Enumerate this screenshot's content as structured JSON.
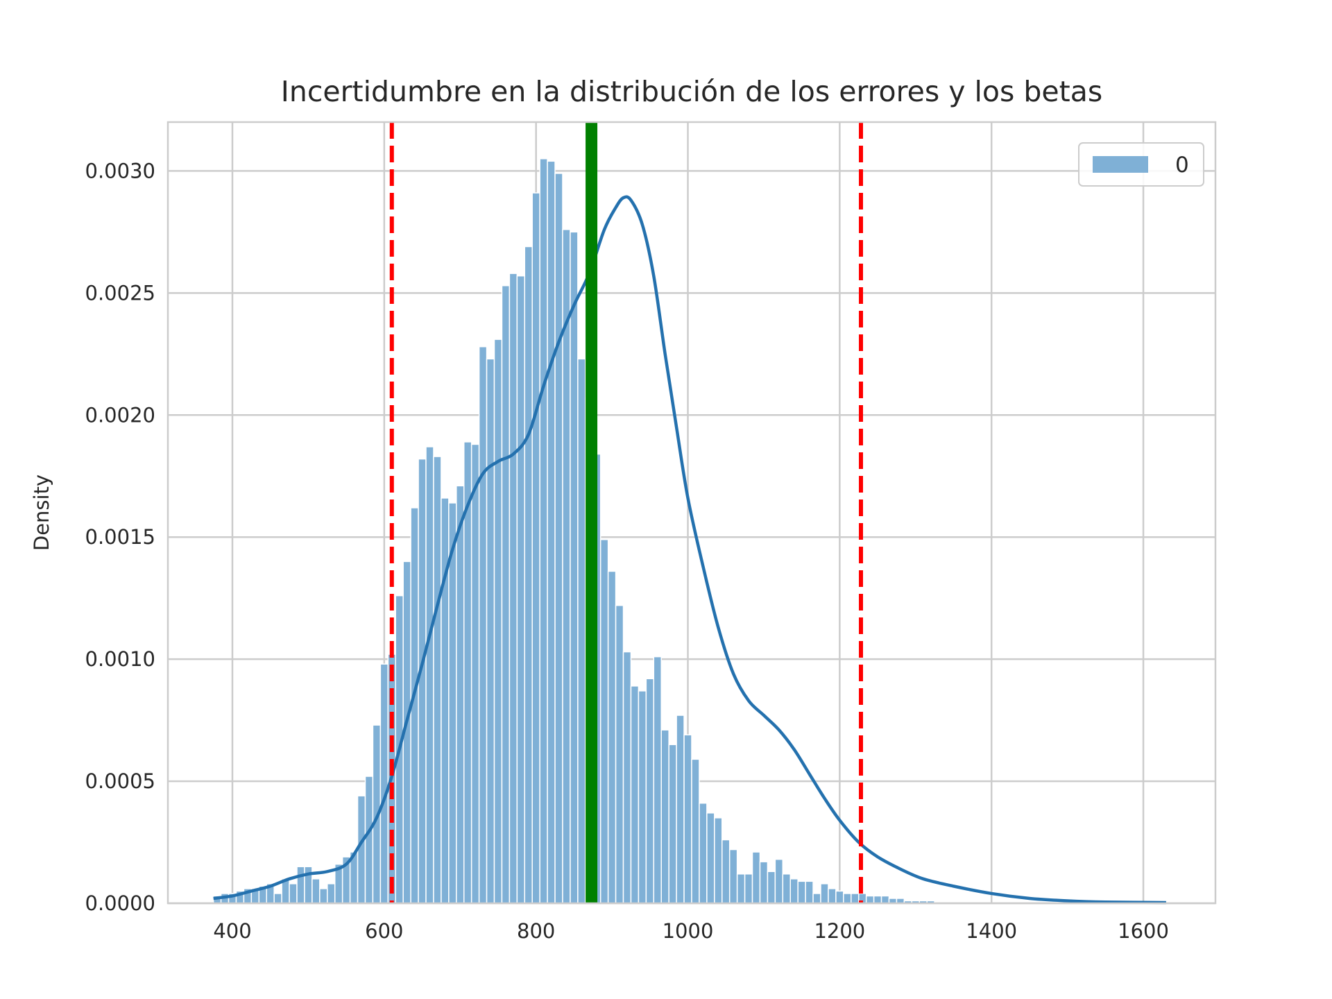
{
  "chart_data": {
    "type": "bar",
    "title": "Incertidumbre en la distribución de los errores y los betas",
    "xlabel": "",
    "ylabel": "Density",
    "xlim": [
      315,
      1695
    ],
    "ylim": [
      0,
      0.0032
    ],
    "xticks": [
      "400",
      "600",
      "800",
      "1000",
      "1200",
      "1400",
      "1600"
    ],
    "yticks": [
      "0.0000",
      "0.0005",
      "0.0010",
      "0.0015",
      "0.0020",
      "0.0025",
      "0.0030"
    ],
    "grid": true,
    "legend": {
      "position": "top-right",
      "entries": [
        "0"
      ]
    },
    "colors": {
      "bars": "#7fb0d6",
      "kde": "#2471ae",
      "mean_line": "#008000",
      "interval_lines": "#ff0000",
      "grid": "#cccccc"
    },
    "histogram": {
      "bin_start": 375,
      "bin_width": 10,
      "density": [
        3e-05,
        4e-05,
        4e-05,
        5e-05,
        6e-05,
        6e-05,
        7e-05,
        8e-05,
        4e-05,
        0.0001,
        8e-05,
        0.00015,
        0.00015,
        0.0001,
        6e-05,
        8e-05,
        0.00016,
        0.00019,
        0.00021,
        0.00044,
        0.00052,
        0.00073,
        0.00098,
        0.00102,
        0.00126,
        0.0014,
        0.00162,
        0.00182,
        0.00187,
        0.00183,
        0.00166,
        0.00164,
        0.00171,
        0.00189,
        0.00188,
        0.00228,
        0.00223,
        0.00231,
        0.00253,
        0.00258,
        0.00257,
        0.00269,
        0.00291,
        0.00305,
        0.00304,
        0.00299,
        0.00276,
        0.00275,
        0.00223,
        0.00207,
        0.00184,
        0.00149,
        0.00136,
        0.00122,
        0.00103,
        0.00089,
        0.00087,
        0.00092,
        0.00101,
        0.00071,
        0.00065,
        0.00077,
        0.00069,
        0.00059,
        0.00041,
        0.00037,
        0.00035,
        0.00026,
        0.00022,
        0.00012,
        0.00012,
        0.00021,
        0.00017,
        0.00013,
        0.00018,
        0.00012,
        0.0001,
        9e-05,
        9e-05,
        4e-05,
        8e-05,
        6e-05,
        5e-05,
        4e-05,
        4e-05,
        4e-05,
        3e-05,
        3e-05,
        3e-05,
        2e-05,
        2e-05,
        1e-05,
        1e-05,
        1e-05,
        1e-05
      ]
    },
    "kde": {
      "x": [
        375,
        400,
        425,
        450,
        475,
        500,
        525,
        550,
        570,
        590,
        610,
        630,
        650,
        670,
        690,
        710,
        730,
        750,
        770,
        790,
        810,
        830,
        850,
        870,
        890,
        905,
        915,
        925,
        940,
        955,
        970,
        985,
        1000,
        1020,
        1040,
        1060,
        1080,
        1100,
        1120,
        1140,
        1160,
        1180,
        1200,
        1225,
        1250,
        1280,
        1310,
        1350,
        1400,
        1450,
        1500,
        1550,
        1630
      ],
      "y": [
        2e-05,
        3e-05,
        5e-05,
        7e-05,
        0.0001,
        0.00012,
        0.00013,
        0.00016,
        0.00025,
        0.00035,
        0.00052,
        0.00075,
        0.00098,
        0.00122,
        0.00145,
        0.00163,
        0.00176,
        0.00181,
        0.00184,
        0.00192,
        0.00212,
        0.0023,
        0.00245,
        0.00258,
        0.00276,
        0.00285,
        0.00289,
        0.00288,
        0.00278,
        0.00257,
        0.00225,
        0.00195,
        0.00166,
        0.00138,
        0.00113,
        0.00094,
        0.00083,
        0.00077,
        0.00071,
        0.00063,
        0.00053,
        0.00043,
        0.00034,
        0.00025,
        0.00019,
        0.00014,
        0.0001,
        7e-05,
        4e-05,
        2e-05,
        1e-05,
        5e-06,
        3e-06
      ]
    },
    "mean_line": {
      "x": 873
    },
    "interval_lines": {
      "x": [
        610,
        1228
      ]
    }
  }
}
